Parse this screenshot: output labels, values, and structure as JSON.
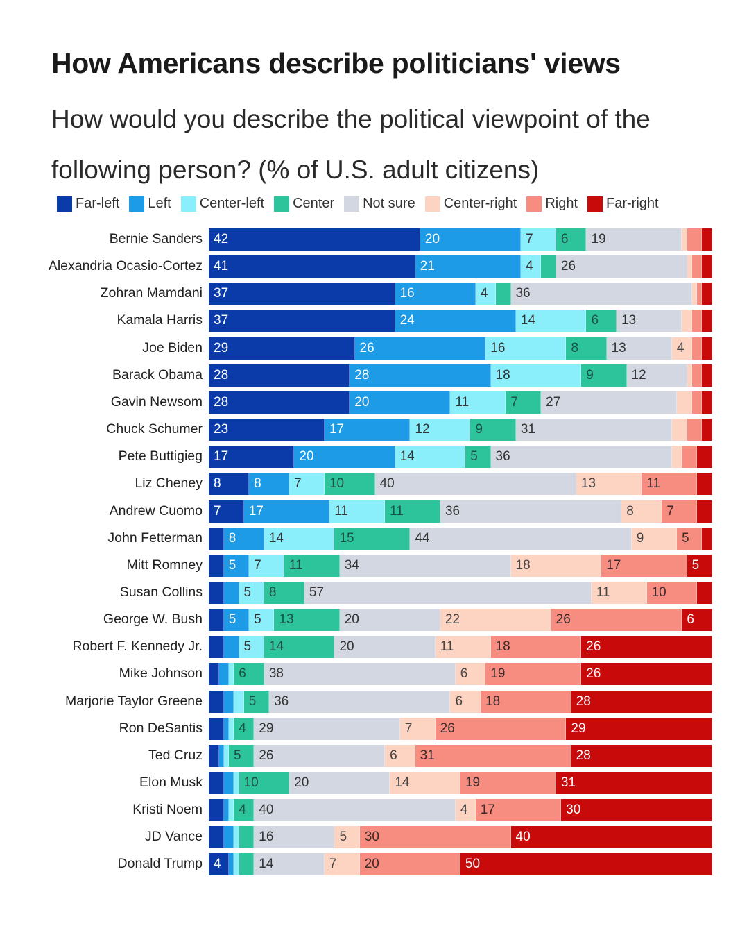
{
  "chart_data": {
    "type": "bar",
    "orientation": "horizontal-stacked-100",
    "title": "How Americans describe politicians' views",
    "subtitle": "How would you describe the political viewpoint of the following person? (% of U.S. adult citizens)",
    "legend": [
      "Far-left",
      "Left",
      "Center-left",
      "Center",
      "Not sure",
      "Center-right",
      "Right",
      "Far-right"
    ],
    "colors": [
      "#0b3aa9",
      "#1d9be6",
      "#8aeefb",
      "#2ec49b",
      "#d3d7e1",
      "#fdd3c2",
      "#f68d80",
      "#c80a0a"
    ],
    "label_colors": [
      "#ffffff",
      "#ffffff",
      "#333333",
      "#1f4f45",
      "#333333",
      "#444444",
      "#3a2a2a",
      "#ffffff"
    ],
    "legend_placement": "top",
    "categories": [
      "Bernie Sanders",
      "Alexandria Ocasio-Cortez",
      "Zohran Mamdani",
      "Kamala Harris",
      "Joe Biden",
      "Barack Obama",
      "Gavin Newsom",
      "Chuck Schumer",
      "Pete Buttigieg",
      "Liz Cheney",
      "Andrew Cuomo",
      "John Fetterman",
      "Mitt Romney",
      "Susan Collins",
      "George W. Bush",
      "Robert F. Kennedy Jr.",
      "Mike Johnson",
      "Marjorie Taylor Greene",
      "Ron DeSantis",
      "Ted Cruz",
      "Elon Musk",
      "Kristi Noem",
      "JD Vance",
      "Donald Trump"
    ],
    "values": [
      [
        42,
        20,
        7,
        6,
        19,
        1,
        3,
        2
      ],
      [
        41,
        21,
        4,
        3,
        26,
        1,
        2,
        2
      ],
      [
        37,
        16,
        4,
        3,
        36,
        1,
        1,
        2
      ],
      [
        37,
        24,
        14,
        6,
        13,
        2,
        2,
        2
      ],
      [
        29,
        26,
        16,
        8,
        13,
        4,
        2,
        2
      ],
      [
        28,
        28,
        18,
        9,
        12,
        1,
        2,
        2
      ],
      [
        28,
        20,
        11,
        7,
        27,
        3,
        2,
        2
      ],
      [
        23,
        17,
        12,
        9,
        31,
        3,
        3,
        2
      ],
      [
        17,
        20,
        14,
        5,
        36,
        2,
        3,
        3
      ],
      [
        8,
        8,
        7,
        10,
        40,
        13,
        11,
        3
      ],
      [
        7,
        17,
        11,
        11,
        36,
        8,
        7,
        3
      ],
      [
        3,
        8,
        14,
        15,
        44,
        9,
        5,
        2
      ],
      [
        3,
        5,
        7,
        11,
        34,
        18,
        17,
        5
      ],
      [
        3,
        3,
        5,
        8,
        57,
        11,
        10,
        3
      ],
      [
        3,
        5,
        5,
        13,
        20,
        22,
        26,
        6
      ],
      [
        3,
        3,
        5,
        14,
        20,
        11,
        18,
        26
      ],
      [
        2,
        2,
        1,
        6,
        38,
        6,
        19,
        26
      ],
      [
        3,
        2,
        2,
        5,
        36,
        6,
        18,
        28
      ],
      [
        3,
        1,
        1,
        4,
        29,
        7,
        26,
        29
      ],
      [
        2,
        1,
        1,
        5,
        26,
        6,
        31,
        28
      ],
      [
        3,
        2,
        1,
        10,
        20,
        14,
        19,
        31
      ],
      [
        3,
        1,
        1,
        4,
        40,
        4,
        17,
        30
      ],
      [
        3,
        2,
        1,
        3,
        16,
        5,
        30,
        40
      ],
      [
        4,
        1,
        1,
        3,
        14,
        7,
        20,
        50
      ]
    ],
    "label_threshold": 4,
    "xlim": [
      0,
      100
    ]
  }
}
